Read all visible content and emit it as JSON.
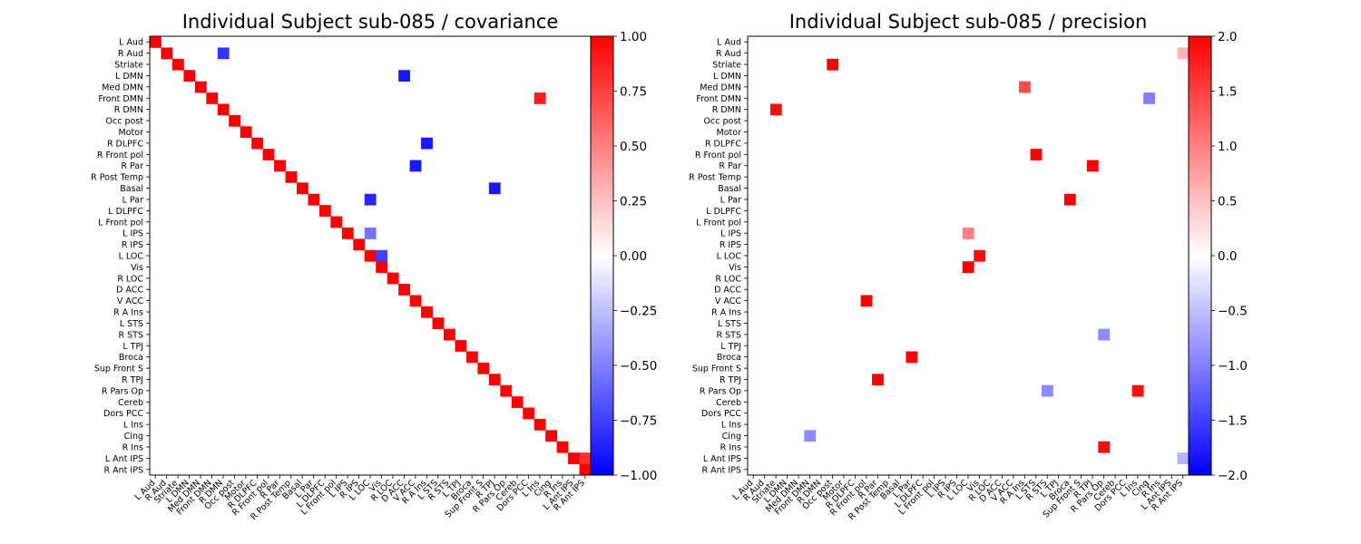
{
  "chart_data": [
    {
      "type": "heatmap",
      "title": "Individual Subject sub-085 / covariance",
      "xlabel": "",
      "ylabel": "",
      "vlim": [
        -1.0,
        1.0
      ],
      "colormap": "bwr",
      "colorbar_ticks": [
        "1.00",
        "0.75",
        "0.50",
        "0.25",
        "0.00",
        "−0.25",
        "−0.50",
        "−0.75",
        "−1.00"
      ],
      "notable_cells": [
        {
          "row": "R Aud",
          "col": "R DMN",
          "value": -0.8
        },
        {
          "row": "L DMN",
          "col": "D ACC",
          "value": -0.9
        },
        {
          "row": "Front DMN",
          "col": "L Ins",
          "value": 0.9
        },
        {
          "row": "R Par",
          "col": "V ACC",
          "value": -0.9
        },
        {
          "row": "Basal",
          "col": "R TPJ",
          "value": -0.9
        },
        {
          "row": "L Par",
          "col": "L LOC",
          "value": -0.85
        },
        {
          "row": "R DLPFC",
          "col": "R A Ins",
          "value": -0.9
        },
        {
          "row": "L IPS",
          "col": "L LOC",
          "value": -0.55
        },
        {
          "row": "L LOC",
          "col": "Vis",
          "value": -0.75
        },
        {
          "row": "L Ant IPS",
          "col": "R Ant IPS",
          "value": 0.8
        }
      ]
    },
    {
      "type": "heatmap",
      "title": "Individual Subject sub-085 / precision",
      "xlabel": "",
      "ylabel": "",
      "vlim": [
        -2.0,
        2.0
      ],
      "colormap": "bwr",
      "diagonal_masked": true,
      "colorbar_ticks": [
        "2.0",
        "1.5",
        "1.0",
        "0.5",
        "0.0",
        "−0.5",
        "−1.0",
        "−1.5",
        "−2.0"
      ],
      "notable_cells": [
        {
          "row": "Striate",
          "col": "Occ post",
          "value": 2.0
        },
        {
          "row": "R Aud",
          "col": "R Ant IPS",
          "value": 0.6
        },
        {
          "row": "Med DMN",
          "col": "R A Ins",
          "value": 1.4
        },
        {
          "row": "Front DMN",
          "col": "Cing",
          "value": -1.0
        },
        {
          "row": "R DMN",
          "col": "Striate",
          "value": 1.9
        },
        {
          "row": "R Front pol",
          "col": "L STS",
          "value": 2.0
        },
        {
          "row": "R Par",
          "col": "R TPJ",
          "value": 2.0
        },
        {
          "row": "L Par",
          "col": "Broca",
          "value": 2.0
        },
        {
          "row": "L IPS",
          "col": "L LOC",
          "value": 1.0
        },
        {
          "row": "L LOC",
          "col": "Vis",
          "value": 1.9
        },
        {
          "row": "Vis",
          "col": "L LOC",
          "value": 2.0
        },
        {
          "row": "V ACC",
          "col": "R Front pol",
          "value": 2.0
        },
        {
          "row": "R STS",
          "col": "R Pars Op",
          "value": -0.9
        },
        {
          "row": "Broca",
          "col": "L Par",
          "value": 2.0
        },
        {
          "row": "R TPJ",
          "col": "R Par",
          "value": 2.0
        },
        {
          "row": "R Pars Op",
          "col": "R STS",
          "value": -0.9
        },
        {
          "row": "R Pars Op",
          "col": "L Ins",
          "value": 1.9
        },
        {
          "row": "Cing",
          "col": "Front DMN",
          "value": -0.9
        },
        {
          "row": "R Ins",
          "col": "R Pars Op",
          "value": 1.9
        },
        {
          "row": "L Ant IPS",
          "col": "R Ant IPS",
          "value": -0.6
        }
      ]
    }
  ],
  "regions": [
    "L Aud",
    "R Aud",
    "Striate",
    "L DMN",
    "Med DMN",
    "Front DMN",
    "R DMN",
    "Occ post",
    "Motor",
    "R DLPFC",
    "R Front pol",
    "R Par",
    "R Post Temp",
    "Basal",
    "L Par",
    "L DLPFC",
    "L Front pol",
    "L IPS",
    "R IPS",
    "L LOC",
    "Vis",
    "R LOC",
    "D ACC",
    "V ACC",
    "R A Ins",
    "L STS",
    "R STS",
    "L TPJ",
    "Broca",
    "Sup Front S",
    "R TPJ",
    "R Pars Op",
    "Cereb",
    "Dors PCC",
    "L Ins",
    "Cing",
    "R Ins",
    "L Ant IPS",
    "R Ant IPS"
  ],
  "colors": {
    "negative": "#0000ff",
    "neutral": "#ffffff",
    "positive": "#ff0000"
  }
}
